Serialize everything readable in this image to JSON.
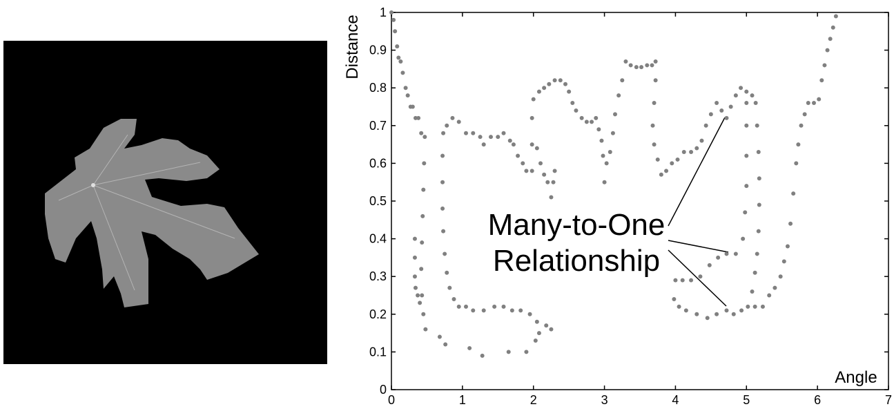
{
  "chart_data": {
    "type": "scatter",
    "x_label": "Angle",
    "y_label": "Distance",
    "annotation": [
      "Many-to-One",
      "Relationship"
    ],
    "color": "#808080",
    "xlim": [
      0,
      7
    ],
    "ylim": [
      0,
      1
    ],
    "xticks": [
      0,
      1,
      2,
      3,
      4,
      5,
      6,
      7
    ],
    "yticks": [
      0,
      0.1,
      0.2,
      0.3,
      0.4,
      0.5,
      0.6,
      0.7,
      0.8,
      0.9,
      1
    ],
    "x": [
      0,
      0.03,
      0.05,
      0.08,
      0.1,
      0.13,
      0.16,
      0.2,
      0.23,
      0.27,
      0.3,
      0.34,
      0.38,
      0.42,
      0.47,
      0.46,
      0.45,
      0.44,
      0.43,
      0.42,
      0.43,
      0.45,
      0.48,
      0.33,
      0.33,
      0.33,
      0.34,
      0.37,
      0.4,
      0.68,
      0.76,
      1.1,
      1.28,
      1.65,
      1.9,
      2.03,
      2.08,
      0.73,
      0.72,
      0.72,
      0.72,
      0.73,
      0.75,
      0.78,
      0.82,
      0.88,
      0.95,
      1.05,
      1.15,
      1.3,
      1.45,
      1.58,
      1.7,
      1.82,
      1.95,
      2.05,
      2.18,
      2.25,
      0.78,
      0.86,
      0.95,
      1.05,
      1.15,
      1.25,
      1.3,
      1.4,
      1.5,
      1.58,
      1.67,
      1.72,
      1.78,
      1.85,
      1.9,
      1.98,
      2.05,
      2.1,
      2.15,
      2.2,
      2.25,
      2.28,
      2.3,
      1.98,
      1.98,
      2,
      2.08,
      2.15,
      2.22,
      2.3,
      2.38,
      2.45,
      2.5,
      2.55,
      2.6,
      2.68,
      2.75,
      2.82,
      2.88,
      2.92,
      2.96,
      2.98,
      3,
      3.03,
      3.08,
      3.12,
      3.15,
      3.2,
      3.25,
      3.3,
      3.37,
      3.45,
      3.52,
      3.6,
      3.67,
      3.72,
      3.72,
      3.7,
      3.68,
      3.7,
      3.75,
      3.8,
      3.87,
      3.95,
      4.03,
      4.12,
      4.22,
      4.3,
      4.37,
      4.43,
      4.5,
      4.58,
      4.65,
      4.72,
      4.78,
      4.85,
      4.92,
      5,
      5.08,
      5.13,
      5.15,
      5.17,
      5.18,
      5.18,
      5.17,
      5.15,
      5.12,
      5.08,
      5.02,
      4.93,
      4.82,
      4.72,
      4.58,
      4.45,
      4.3,
      4.15,
      4.05,
      3.98,
      4,
      4.1,
      4.22,
      4.35,
      4.48,
      4.6,
      4.72,
      4.85,
      4.95,
      4.98,
      5,
      5,
      5,
      5,
      5.12,
      5.23,
      5.32,
      5.4,
      5.48,
      5.53,
      5.58,
      5.62,
      5.66,
      5.7,
      5.73,
      5.77,
      5.82,
      5.87,
      5.95,
      6.02,
      6.06,
      6.1,
      6.14,
      6.18,
      6.22,
      6.26
    ],
    "values": [
      1,
      0.98,
      0.95,
      0.91,
      0.88,
      0.87,
      0.84,
      0.8,
      0.78,
      0.75,
      0.75,
      0.72,
      0.72,
      0.68,
      0.67,
      0.6,
      0.53,
      0.46,
      0.39,
      0.32,
      0.25,
      0.2,
      0.16,
      0.4,
      0.35,
      0.3,
      0.27,
      0.25,
      0.23,
      0.14,
      0.12,
      0.11,
      0.09,
      0.1,
      0.1,
      0.13,
      0.15,
      0.68,
      0.62,
      0.55,
      0.48,
      0.42,
      0.36,
      0.31,
      0.27,
      0.24,
      0.22,
      0.22,
      0.21,
      0.21,
      0.22,
      0.22,
      0.21,
      0.21,
      0.2,
      0.18,
      0.17,
      0.16,
      0.7,
      0.72,
      0.71,
      0.68,
      0.68,
      0.67,
      0.65,
      0.67,
      0.67,
      0.68,
      0.66,
      0.65,
      0.62,
      0.6,
      0.58,
      0.58,
      0.64,
      0.6,
      0.57,
      0.55,
      0.51,
      0.55,
      0.58,
      0.65,
      0.72,
      0.77,
      0.79,
      0.8,
      0.81,
      0.82,
      0.82,
      0.81,
      0.79,
      0.76,
      0.74,
      0.72,
      0.71,
      0.71,
      0.72,
      0.69,
      0.66,
      0.62,
      0.55,
      0.6,
      0.63,
      0.68,
      0.73,
      0.78,
      0.82,
      0.87,
      0.86,
      0.855,
      0.855,
      0.86,
      0.86,
      0.87,
      0.82,
      0.76,
      0.7,
      0.65,
      0.61,
      0.57,
      0.58,
      0.6,
      0.61,
      0.63,
      0.63,
      0.64,
      0.66,
      0.7,
      0.73,
      0.76,
      0.74,
      0.72,
      0.75,
      0.78,
      0.8,
      0.79,
      0.78,
      0.76,
      0.7,
      0.63,
      0.56,
      0.49,
      0.42,
      0.36,
      0.31,
      0.26,
      0.22,
      0.21,
      0.2,
      0.21,
      0.2,
      0.19,
      0.2,
      0.21,
      0.22,
      0.24,
      0.29,
      0.29,
      0.29,
      0.3,
      0.33,
      0.35,
      0.36,
      0.36,
      0.4,
      0.47,
      0.54,
      0.62,
      0.7,
      0.76,
      0.22,
      0.22,
      0.25,
      0.27,
      0.3,
      0.34,
      0.38,
      0.44,
      0.52,
      0.6,
      0.65,
      0.7,
      0.73,
      0.76,
      0.76,
      0.77,
      0.82,
      0.86,
      0.9,
      0.93,
      0.96,
      0.99
    ]
  }
}
